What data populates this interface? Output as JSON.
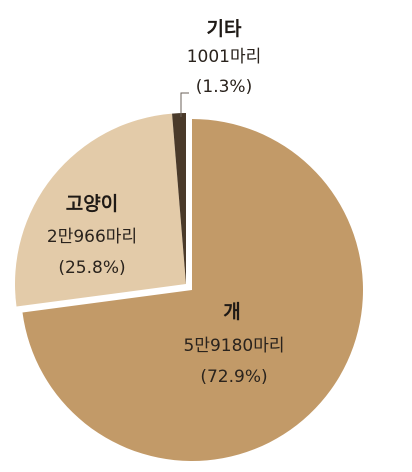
{
  "chart_data": {
    "type": "pie",
    "unit": "마리",
    "slices": [
      {
        "name": "개",
        "count_label": "5만9180마리",
        "count": 59180,
        "percent_label": "(72.9%)",
        "percent": 72.9,
        "color": "#c29a68"
      },
      {
        "name": "고양이",
        "count_label": "2만966마리",
        "count": 20966,
        "percent_label": "(25.8%)",
        "percent": 25.8,
        "color": "#e3cba9"
      },
      {
        "name": "기타",
        "count_label": "1001마리",
        "count": 1001,
        "percent_label": "(1.3%)",
        "percent": 1.3,
        "color": "#4a3a2a"
      }
    ],
    "start_angle_deg": 0,
    "direction": "clockwise",
    "exploded_slice": "개"
  }
}
